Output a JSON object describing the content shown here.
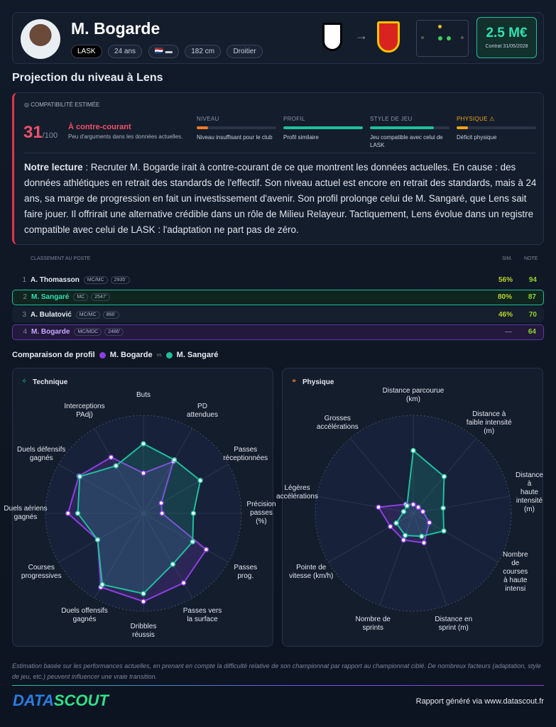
{
  "header": {
    "name": "M. Bogarde",
    "club": "LASK",
    "age": "24 ans",
    "height": "182 cm",
    "foot": "Droitier",
    "value": "2.5 M€",
    "contract": "Contrat 31/05/2028"
  },
  "section_title": "Projection du niveau à Lens",
  "compat": {
    "label": "COMPATIBILITÉ ESTIMÉE",
    "score": 31,
    "score_max": "/100",
    "verdict": "À contre-courant",
    "verdict_sub": "Peu d'arguments dans les données actuelles.",
    "criteria": [
      {
        "name": "NIVEAU",
        "desc": "Niveau insuffisant pour le club",
        "level": 14,
        "color": "#f07a2a"
      },
      {
        "name": "PROFIL",
        "desc": "Profil similaire",
        "level": 100,
        "color": "#1fbf9a"
      },
      {
        "name": "STYLE DE JEU",
        "desc": "Jeu compatible avec celui de LASK",
        "level": 80,
        "color": "#1fbf9a"
      },
      {
        "name": "PHYSIQUE ⚠",
        "desc": "Déficit physique",
        "level": 14,
        "color": "#f0a21a"
      }
    ]
  },
  "reading": {
    "lead": "Notre lecture",
    "text": " : Recruter M. Bogarde irait à contre-courant de ce que montrent les données actuelles. En cause : des données athlétiques en retrait des standards de l'effectif. Son niveau actuel est encore en retrait des standards, mais à 24 ans, sa marge de progression en fait un investissement d'avenir. Son profil prolonge celui de M. Sangaré, que Lens sait faire jouer. Il offrirait une alternative crédible dans un rôle de Milieu Relayeur. Tactiquement, Lens évolue dans un registre compatible avec celui de LASK : l'adaptation ne part pas de zéro."
  },
  "ranking": {
    "header": "CLASSEMENT AU POSTE",
    "sim_header": "SIM.",
    "note_header": "NOTE",
    "rows": [
      {
        "rank": 1,
        "name": "A. Thomasson",
        "pos": "MC/MC",
        "minutes": "2935'",
        "sim": "56%",
        "note": 94
      },
      {
        "rank": 2,
        "name": "M. Sangaré",
        "pos": "MC",
        "minutes": "2547'",
        "sim": "80%",
        "note": 87
      },
      {
        "rank": 3,
        "name": "A. Bulatović",
        "pos": "MC/MC",
        "minutes": "866'",
        "sim": "46%",
        "note": 70
      },
      {
        "rank": 4,
        "name": "M. Bogarde",
        "pos": "MC/MDC",
        "minutes": "2486'",
        "sim": "—",
        "note": 64
      }
    ]
  },
  "comparison": {
    "title": "Comparaison de profil",
    "vs": "vs"
  },
  "chart_data": [
    {
      "type": "radar",
      "title": "Technique",
      "rlim": [
        0,
        100
      ],
      "rticks": [
        20,
        40,
        60,
        80,
        100
      ],
      "categories": [
        "Buts",
        "PD\nattendues",
        "Passes\nréceptionnées",
        "Précision passes\n(%)",
        "Passes\nprog.",
        "Passes vers\nla surface",
        "Dribbles\nréussis",
        "Duels offensifs\ngagnés",
        "Courses\nprogressives",
        "Duels aériens\ngagnés",
        "Duels défensifs\ngagnés",
        "Interceptions\nPAdj)"
      ],
      "series": [
        {
          "name": "M. Bogarde",
          "color": "#8e3fe0",
          "values": [
            41,
            61,
            21,
            19,
            74,
            82,
            90,
            87,
            54,
            77,
            76,
            66
          ]
        },
        {
          "name": "M. Sangaré",
          "color": "#1fbf9a",
          "values": [
            71,
            63,
            67,
            51,
            58,
            60,
            82,
            84,
            54,
            67,
            75,
            56
          ]
        }
      ]
    },
    {
      "type": "radar",
      "title": "Physique",
      "rlim": [
        0,
        100
      ],
      "rticks": [
        20,
        40,
        60,
        80,
        100
      ],
      "categories": [
        "Distance parcourue\n(km)",
        "Distance à\nfaible intensité (m)",
        "Distance à\nhaute intensité (m)",
        "Nombre de\ncourses à haute intensi",
        "Distance en\nsprint (m)",
        "Nombre de\nsprints",
        "Pointe de\nvitesse (km/h)",
        "Légères\naccélérations",
        "Grosses\naccélérations"
      ],
      "series": [
        {
          "name": "M. Bogarde",
          "color": "#8e3fe0",
          "values": [
            9,
            8,
            10,
            19,
            32,
            29,
            27,
            36,
            12
          ]
        },
        {
          "name": "M. Sangaré",
          "color": "#1fbf9a",
          "values": [
            64,
            49,
            31,
            36,
            25,
            24,
            20,
            10,
            10
          ]
        }
      ]
    }
  ],
  "footer": {
    "disclaimer": "Estimation basée sur les performances actuelles, en prenant en compte la difficulté relative de son championnat par rapport au championnat ciblé. De nombreux facteurs (adaptation, style de jeu, etc.) peuvent influencer une vraie transition.",
    "logo_a": "DATA",
    "logo_b": "SCOUT",
    "credit": "Rapport généré via www.datascout.fr"
  }
}
